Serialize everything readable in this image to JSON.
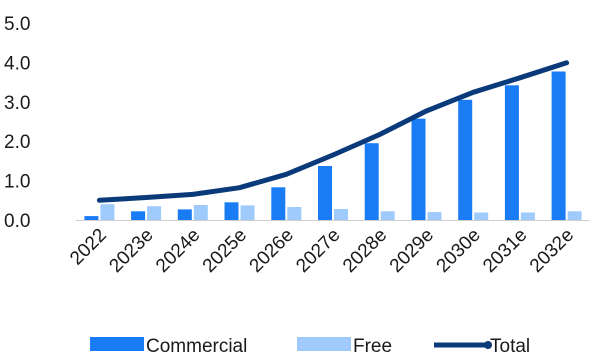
{
  "chart_data": {
    "type": "bar",
    "title": "",
    "xlabel": "",
    "ylabel": "",
    "categories": [
      "2022",
      "2023e",
      "2024e",
      "2025e",
      "2026e",
      "2027e",
      "2028e",
      "2029e",
      "2030e",
      "2031e",
      "2032e"
    ],
    "series": [
      {
        "name": "Commercial",
        "type": "bar",
        "color": "#1a7cf5",
        "values": [
          0.1,
          0.22,
          0.27,
          0.45,
          0.83,
          1.37,
          1.95,
          2.57,
          3.05,
          3.42,
          3.77
        ]
      },
      {
        "name": "Free",
        "type": "bar",
        "color": "#9ecbfb",
        "values": [
          0.4,
          0.35,
          0.38,
          0.37,
          0.33,
          0.28,
          0.22,
          0.2,
          0.19,
          0.19,
          0.22
        ]
      },
      {
        "name": "Total",
        "type": "line",
        "color": "#0b3a7a",
        "values": [
          0.5,
          0.57,
          0.65,
          0.82,
          1.16,
          1.65,
          2.17,
          2.77,
          3.24,
          3.61,
          3.99
        ]
      }
    ],
    "yticks": [
      "0.0",
      "1.0",
      "2.0",
      "3.0",
      "4.0",
      "5.0"
    ],
    "ylim": [
      0,
      5
    ],
    "grid": false,
    "legend": "bottom"
  }
}
